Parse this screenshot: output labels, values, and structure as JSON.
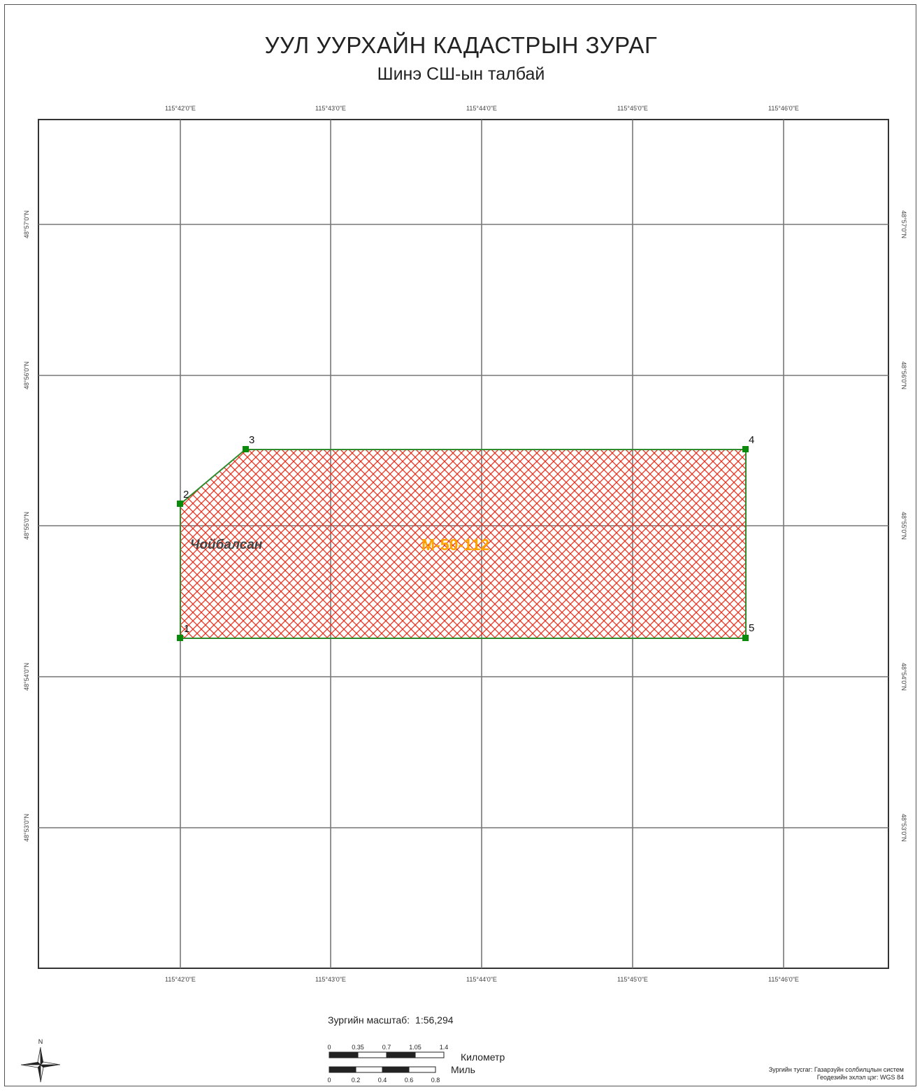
{
  "title": "УУЛ УУРХАЙН КАДАСТРЫН ЗУРАГ",
  "subtitle": "Шинэ СШ-ын талбай",
  "grid": {
    "lon_labels": [
      "115°42'0\"E",
      "115°43'0\"E",
      "115°44'0\"E",
      "115°45'0\"E",
      "115°46'0\"E"
    ],
    "lat_labels": [
      "48°57'0\"N",
      "48°56'0\"N",
      "48°55'0\"N",
      "48°54'0\"N",
      "48°53'0\"N"
    ]
  },
  "parcel": {
    "vertex_labels": [
      "1",
      "2",
      "3",
      "4",
      "5"
    ],
    "place_label": "Чойбалсан",
    "sheet_label": "M-50-112",
    "fill_color": "#e8321e",
    "outline_color": "#2e8b2e",
    "vertex_color": "#0a8a0a"
  },
  "scale": {
    "label": "Зургийн масштаб:",
    "value": "1:56,294",
    "km_ticks": [
      "0",
      "0.35",
      "0.7",
      "1.05",
      "1.4"
    ],
    "km_unit": "Километр",
    "mile_ticks": [
      "0",
      "0.2",
      "0.4",
      "0.6",
      "0.8"
    ],
    "mile_unit": "Миль"
  },
  "north_arrow": {
    "letter": "N",
    "icon": "compass-rose-icon"
  },
  "credits": {
    "projection": "Зургийн тусгаг: Газарзүйн солбилцлын систем",
    "datum": "Геодезийн эхлэл цэг: WGS 84"
  }
}
